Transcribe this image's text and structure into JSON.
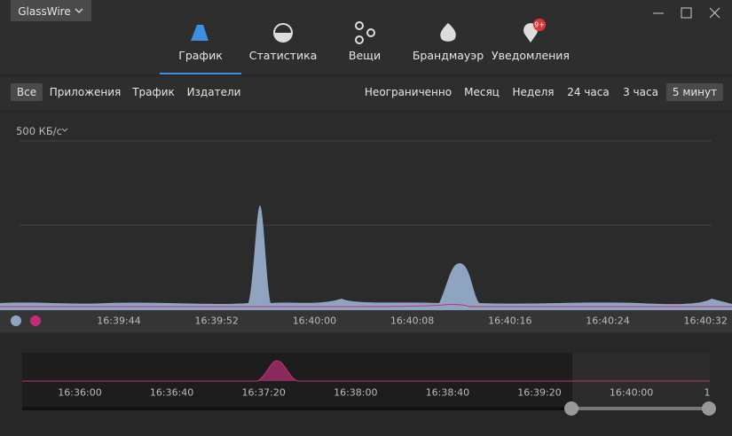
{
  "app_title": "GlassWire",
  "tabs": [
    {
      "label": "График"
    },
    {
      "label": "Статистика"
    },
    {
      "label": "Вещи"
    },
    {
      "label": "Брандмауэр"
    },
    {
      "label": "Уведомления",
      "badge": "9+"
    }
  ],
  "filters": {
    "types": [
      "Все",
      "Приложения",
      "Трафик",
      "Издатели"
    ],
    "ranges": [
      "Неограниченно",
      "Месяц",
      "Неделя",
      "24 часа",
      "3 часа",
      "5 минут"
    ]
  },
  "graph": {
    "scale_label": "500 КБ/с",
    "time_labels": [
      "16:39:44",
      "16:39:52",
      "16:40:00",
      "16:40:08",
      "16:40:16",
      "16:40:24",
      "16:40:32"
    ]
  },
  "timeline": {
    "time_labels": [
      "16:36:00",
      "16:36:40",
      "16:37:20",
      "16:38:00",
      "16:38:40",
      "16:39:20",
      "16:40:00",
      "1"
    ]
  }
}
